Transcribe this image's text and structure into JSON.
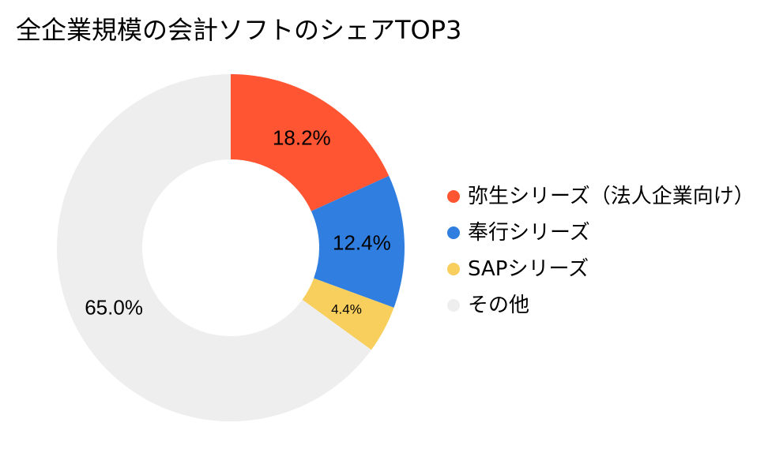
{
  "chart_data": {
    "type": "pie",
    "title": "全企業規模の会計ソフトのシェアTOP3",
    "categories": [
      "弥生シリーズ（法人企業向け）",
      "奉行シリーズ",
      "SAPシリーズ",
      "その他"
    ],
    "values": [
      18.2,
      12.4,
      4.4,
      65.0
    ],
    "value_labels": [
      "18.2%",
      "12.4%",
      "4.4%",
      "65.0%"
    ],
    "colors": [
      "#FF5533",
      "#2F7EE0",
      "#F8CF5C",
      "#EEEEEE"
    ],
    "donut": true,
    "legend_position": "right"
  }
}
